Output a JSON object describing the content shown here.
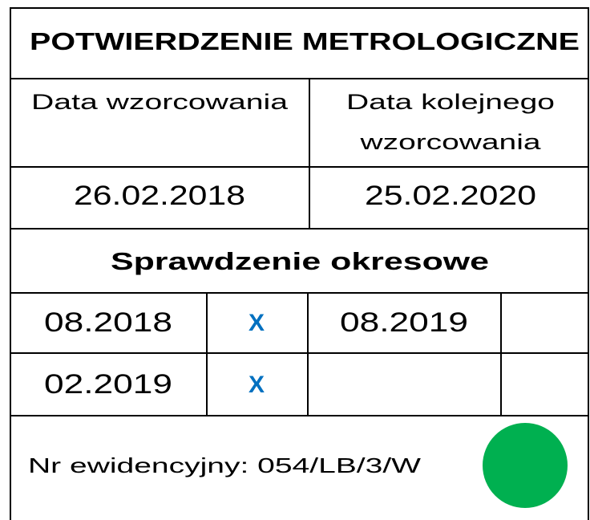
{
  "title": "POTWIERDZENIE METROLOGICZNE",
  "calibration": {
    "date_label": "Data wzorcowania",
    "next_label": [
      "Data kolejnego",
      "wzorcowania"
    ],
    "date": "26.02.2018",
    "next_date": "25.02.2020"
  },
  "periodic_check": {
    "title": "Sprawdzenie okresowe",
    "rows": [
      [
        "08.2018",
        "X",
        "08.2019"
      ],
      [
        "02.2019",
        "X"
      ]
    ]
  },
  "footer": {
    "inventory_number": "Nr ewidencyjny: 054/LB/3/W"
  }
}
